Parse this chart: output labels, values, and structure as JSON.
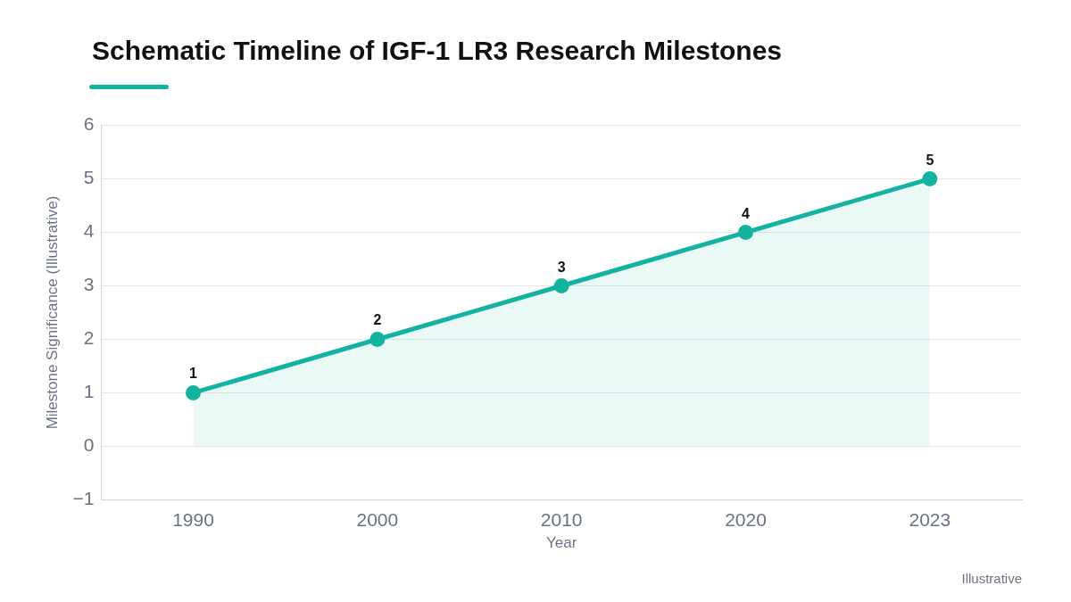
{
  "chart_data": {
    "type": "area",
    "title": "Schematic Timeline of IGF-1 LR3 Research Milestones",
    "xlabel": "Year",
    "ylabel": "Milestone Significance (Illustrative)",
    "categories": [
      "1990",
      "2000",
      "2010",
      "2020",
      "2023"
    ],
    "series": [
      {
        "color": "#14b3a0",
        "values": [
          1,
          2,
          3,
          4,
          5
        ]
      }
    ],
    "ylim": [
      -1,
      6
    ],
    "yticks": [
      {
        "value": -1,
        "label": "−1"
      },
      0,
      1,
      2,
      3,
      4,
      5,
      6
    ],
    "grid": "y",
    "legend": false,
    "marker": "circle",
    "line_style": "solid",
    "data_labels": true,
    "annotations": [
      "Illustrative"
    ]
  }
}
